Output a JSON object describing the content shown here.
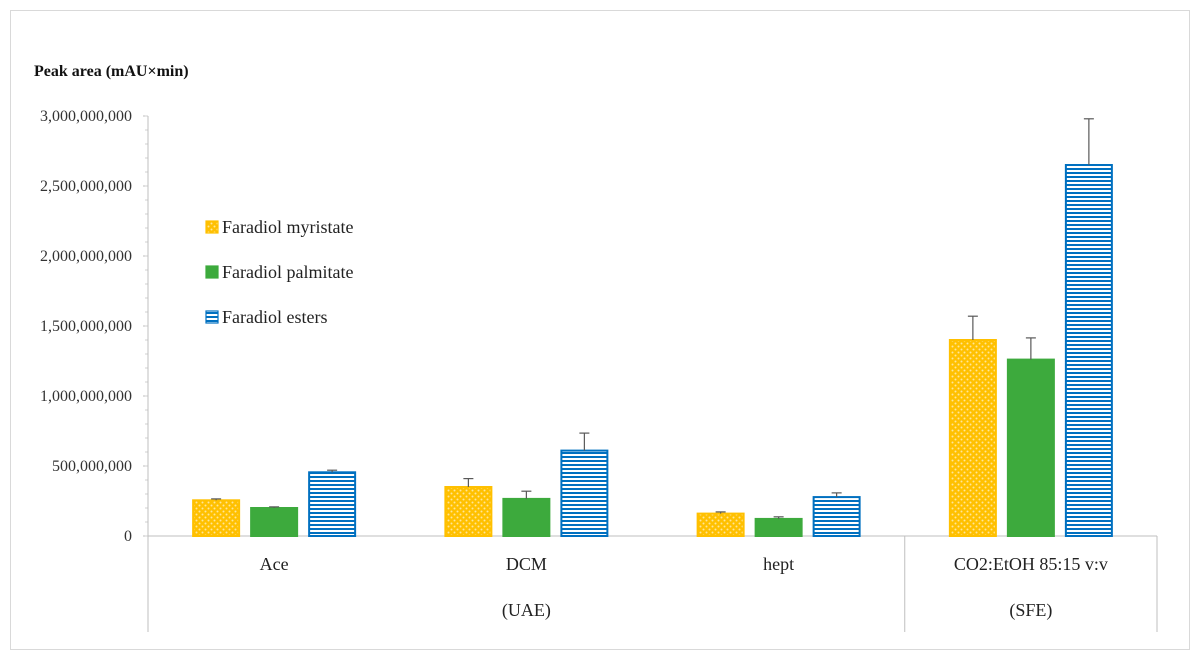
{
  "chart_data": {
    "type": "bar",
    "ylabel": "Peak area (mAU×min)",
    "ylim": [
      0,
      3000000000
    ],
    "y_ticks": [
      0,
      500000000,
      1000000000,
      1500000000,
      2000000000,
      2500000000,
      3000000000
    ],
    "y_tick_labels": [
      "0",
      "500,000,000",
      "1,000,000,000",
      "1,500,000,000",
      "2,000,000,000",
      "2,500,000,000",
      "3,000,000,000"
    ],
    "categories": [
      "Ace",
      "DCM",
      "hept",
      "CO2:EtOH 85:15 v:v"
    ],
    "groups": [
      {
        "label": "(UAE)",
        "categories": [
          "Ace",
          "DCM",
          "hept"
        ]
      },
      {
        "label": "(SFE)",
        "categories": [
          "CO2:EtOH 85:15 v:v"
        ]
      }
    ],
    "series": [
      {
        "name": "Faradiol myristate",
        "color": "#FFC000",
        "pattern": "dotted",
        "values": [
          255000000,
          350000000,
          160000000,
          1400000000
        ],
        "errors": [
          10000000,
          60000000,
          12000000,
          170000000
        ]
      },
      {
        "name": "Faradiol palmitate",
        "color": "#3DAA3D",
        "pattern": "solid",
        "values": [
          200000000,
          265000000,
          122000000,
          1260000000
        ],
        "errors": [
          8000000,
          55000000,
          15000000,
          155000000
        ]
      },
      {
        "name": "Faradiol esters",
        "color": "#0070C0",
        "pattern": "horizontal-stripes",
        "values": [
          455000000,
          610000000,
          278000000,
          2650000000
        ],
        "errors": [
          15000000,
          125000000,
          30000000,
          330000000
        ]
      }
    ],
    "legend_position": "upper-left",
    "grid": false
  }
}
